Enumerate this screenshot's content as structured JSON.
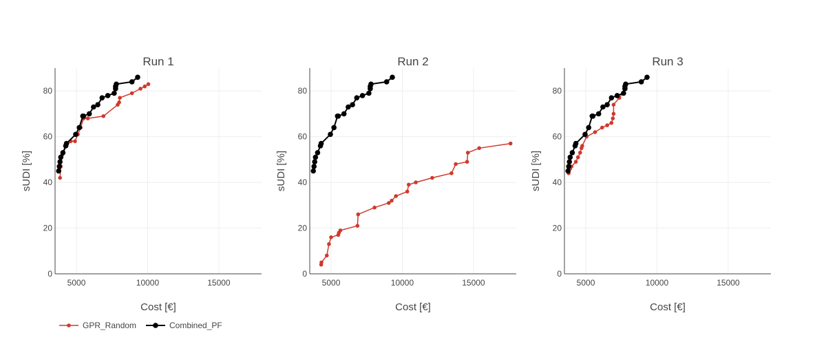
{
  "colors": {
    "GPR_Random": "#d0392b",
    "Combined_PF": "#000000"
  },
  "legend": [
    {
      "name": "GPR_Random",
      "color": "#d0392b",
      "marker": "circle-small"
    },
    {
      "name": "Combined_PF",
      "color": "#000000",
      "marker": "circle-large"
    }
  ],
  "chart_data": [
    {
      "type": "line",
      "title": "Run 1",
      "xlabel": "Cost [€]",
      "ylabel": "sUDI [%]",
      "xlim": [
        3500,
        18000
      ],
      "ylim": [
        0,
        90
      ],
      "xticks": [
        5000,
        10000,
        15000
      ],
      "yticks": [
        0,
        20,
        40,
        60,
        80
      ],
      "grid": true,
      "legend_position": "bottom-left",
      "series": [
        {
          "name": "GPR_Random",
          "x": [
            3850,
            3900,
            4000,
            4300,
            4600,
            4900,
            5100,
            5300,
            5500,
            5800,
            6900,
            7900,
            8000,
            8050,
            8900,
            9500,
            9800,
            10050
          ],
          "y": [
            42,
            47,
            52,
            56,
            58,
            58,
            61,
            64,
            68,
            68,
            69,
            74,
            75,
            77,
            79,
            81,
            82,
            83
          ]
        },
        {
          "name": "Combined_PF",
          "x": [
            3750,
            3800,
            3850,
            3900,
            4050,
            4250,
            4300,
            4950,
            5200,
            5450,
            5500,
            5900,
            6200,
            6500,
            6800,
            7200,
            7650,
            7750,
            7750,
            7800,
            8900,
            9300
          ],
          "y": [
            45,
            47,
            49,
            51,
            53,
            56,
            57,
            61,
            64,
            69,
            69,
            70,
            73,
            74,
            77,
            78,
            79,
            81,
            82,
            83,
            84,
            86
          ]
        }
      ]
    },
    {
      "type": "line",
      "title": "Run 2",
      "xlabel": "Cost [€]",
      "ylabel": "sUDI [%]",
      "xlim": [
        3500,
        18000
      ],
      "ylim": [
        0,
        90
      ],
      "xticks": [
        5000,
        10000,
        15000
      ],
      "yticks": [
        0,
        20,
        40,
        60,
        80
      ],
      "grid": true,
      "series": [
        {
          "name": "GPR_Random",
          "x": [
            4300,
            4320,
            4700,
            4850,
            5000,
            5500,
            5550,
            5650,
            6850,
            6900,
            8050,
            9050,
            9250,
            9550,
            10350,
            10450,
            10950,
            12100,
            13450,
            13750,
            14550,
            14600,
            15400,
            17600
          ],
          "y": [
            4,
            5,
            8,
            13,
            16,
            17,
            18,
            19,
            21,
            26,
            29,
            31,
            32,
            34,
            36,
            39,
            40,
            42,
            44,
            48,
            49,
            53,
            55,
            57
          ]
        },
        {
          "name": "Combined_PF",
          "x": [
            3750,
            3800,
            3850,
            3900,
            4050,
            4250,
            4300,
            4950,
            5200,
            5450,
            5500,
            5900,
            6200,
            6500,
            6800,
            7200,
            7650,
            7750,
            7750,
            7800,
            8900,
            9300
          ],
          "y": [
            45,
            47,
            49,
            51,
            53,
            56,
            57,
            61,
            64,
            69,
            69,
            70,
            73,
            74,
            77,
            78,
            79,
            81,
            82,
            83,
            84,
            86
          ]
        }
      ]
    },
    {
      "type": "line",
      "title": "Run 3",
      "xlabel": "Cost [€]",
      "ylabel": "sUDI [%]",
      "xlim": [
        3500,
        18000
      ],
      "ylim": [
        0,
        90
      ],
      "xticks": [
        5000,
        10000,
        15000
      ],
      "yticks": [
        0,
        20,
        40,
        60,
        80
      ],
      "grid": true,
      "series": [
        {
          "name": "GPR_Random",
          "x": [
            3800,
            3900,
            4000,
            4300,
            4450,
            4600,
            4700,
            4750,
            5050,
            5650,
            6150,
            6500,
            6800,
            6900,
            6950,
            6950,
            7350,
            7600,
            7700
          ],
          "y": [
            44,
            46,
            47,
            49,
            51,
            53,
            55,
            56,
            60,
            62,
            64,
            65,
            66,
            68,
            70,
            74,
            77,
            79,
            81
          ]
        },
        {
          "name": "Combined_PF",
          "x": [
            3750,
            3800,
            3850,
            3900,
            4050,
            4250,
            4300,
            4950,
            5200,
            5450,
            5500,
            5900,
            6200,
            6500,
            6800,
            7200,
            7650,
            7750,
            7750,
            7800,
            8900,
            9300
          ],
          "y": [
            45,
            47,
            49,
            51,
            53,
            56,
            57,
            61,
            64,
            69,
            69,
            70,
            73,
            74,
            77,
            78,
            79,
            81,
            82,
            83,
            84,
            86
          ]
        }
      ]
    }
  ]
}
